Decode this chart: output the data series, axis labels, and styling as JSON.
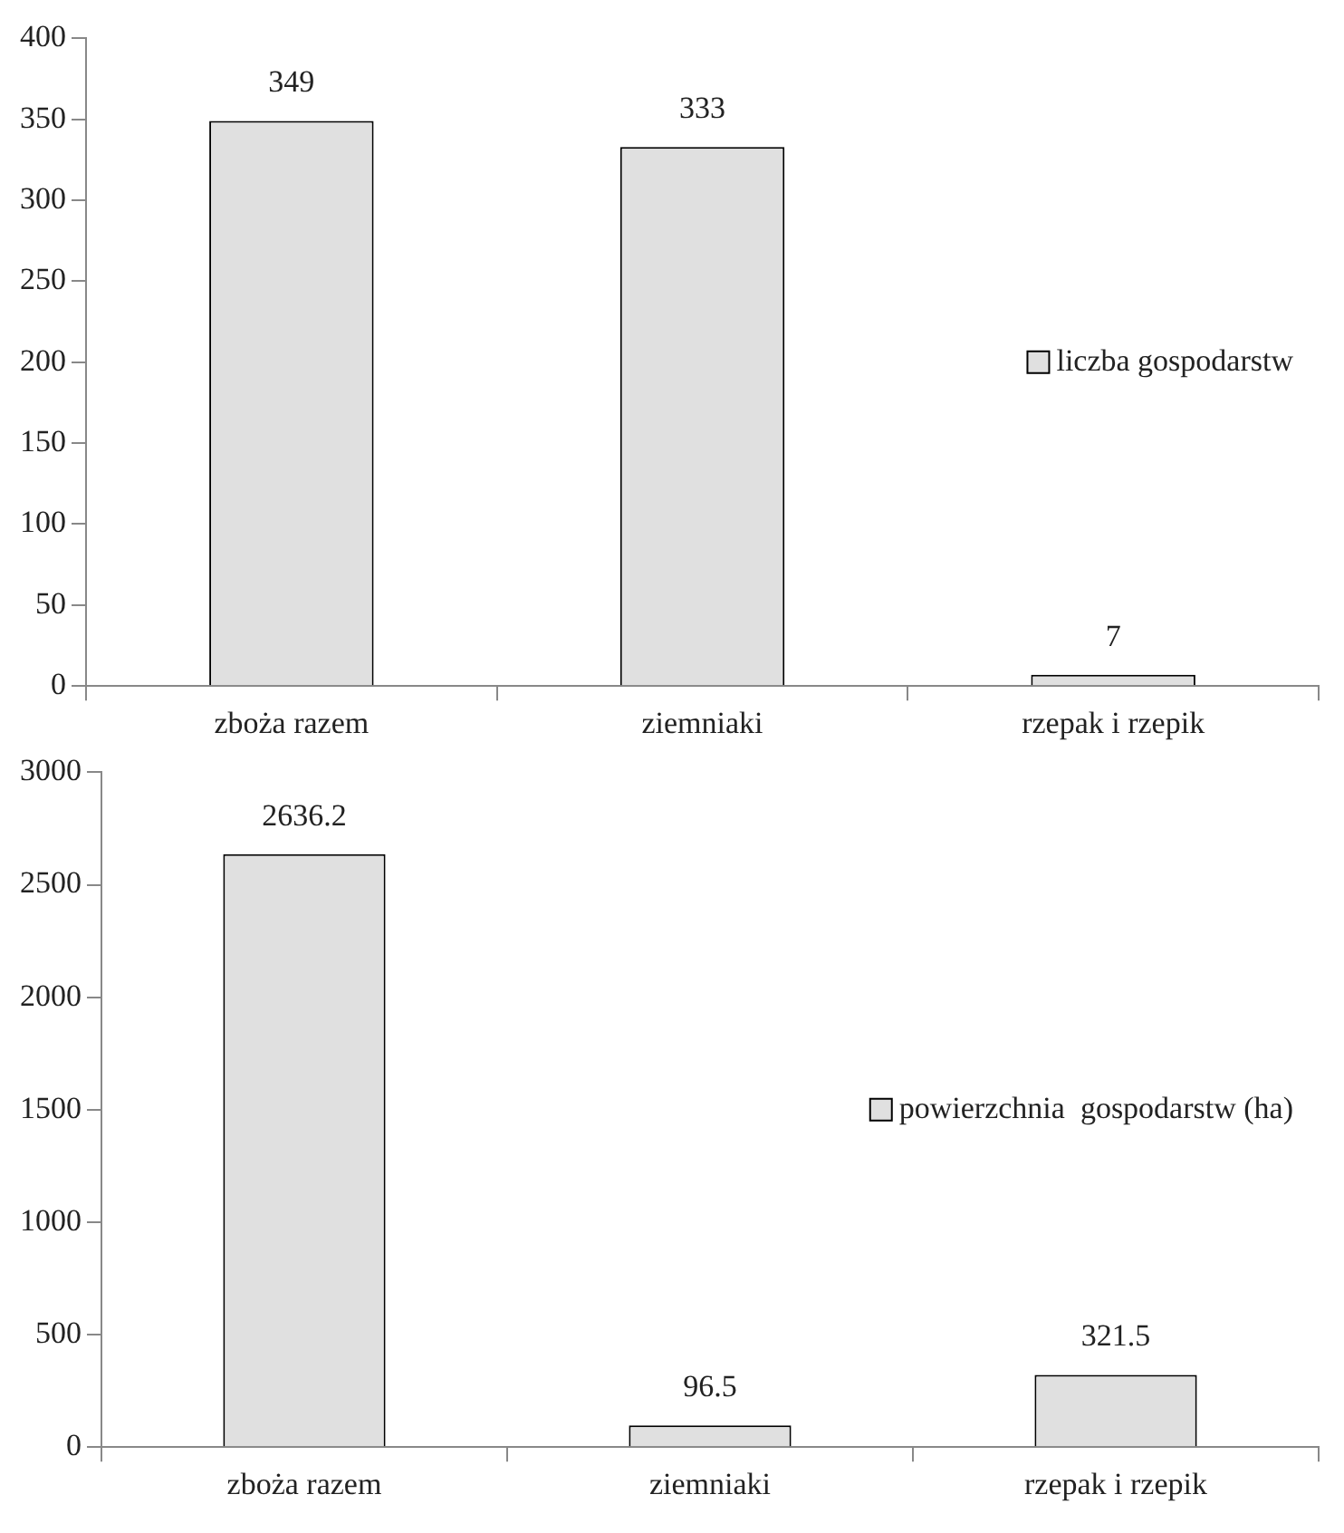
{
  "chart_data": [
    {
      "type": "bar",
      "categories": [
        "zboża razem",
        "ziemniaki",
        "rzepak i rzepik"
      ],
      "series": [
        {
          "name": "liczba gospodarstw",
          "color": "#e0e0e0",
          "values": [
            349,
            333,
            7
          ]
        }
      ],
      "ylim": [
        0,
        400
      ],
      "yticks": [
        0,
        50,
        100,
        150,
        200,
        250,
        300,
        350,
        400
      ],
      "data_labels": true,
      "legend": "right",
      "grid": false
    },
    {
      "type": "bar",
      "categories": [
        "zboża razem",
        "ziemniaki",
        "rzepak i rzepik"
      ],
      "series": [
        {
          "name": "powierzchnia  gospodarstw (ha)",
          "color": "#e0e0e0",
          "values": [
            2636.2,
            96.5,
            321.5
          ]
        }
      ],
      "ylim": [
        0,
        3000
      ],
      "yticks": [
        0,
        500,
        1000,
        1500,
        2000,
        2500,
        3000
      ],
      "data_labels": true,
      "legend": "right",
      "grid": false
    }
  ]
}
